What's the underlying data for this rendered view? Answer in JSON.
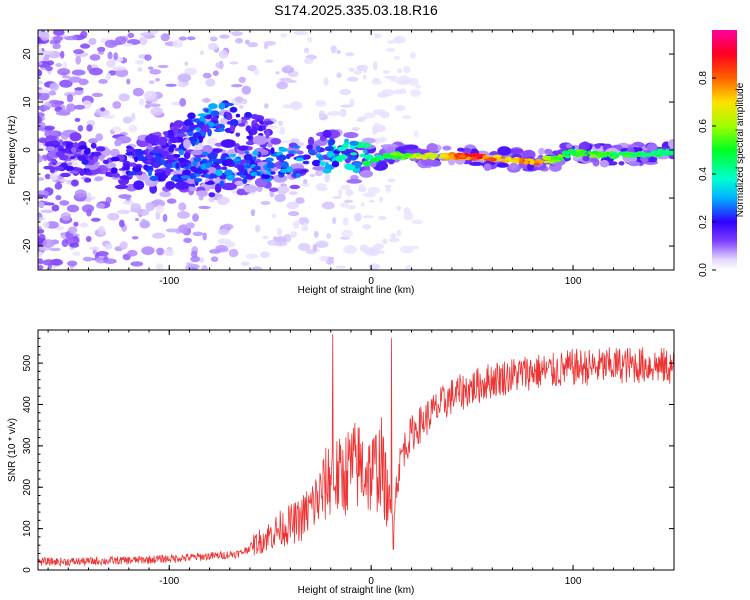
{
  "title": "S174.2025.335.03.18.R16",
  "colors": {
    "snr_line": "#ee3333",
    "frame": "#000000",
    "background": "#ffffff"
  },
  "chart_data": [
    {
      "type": "heatmap",
      "xlabel": "Height of straight line (km)",
      "ylabel": "Frequency (Hz)",
      "xlim": [
        -165,
        150
      ],
      "ylim": [
        -25,
        25
      ],
      "xticks": [
        -100,
        0,
        100
      ],
      "yticks": [
        -20,
        -10,
        0,
        10,
        20
      ],
      "colorbar": {
        "label": "Normalized spectral amplitude",
        "range": [
          0,
          1
        ],
        "ticks": [
          "0.0",
          "0.2",
          "0.4",
          "0.6",
          "0.8"
        ],
        "tick_values": [
          0.0,
          0.2,
          0.4,
          0.6,
          0.8
        ],
        "colormap": "rainbow (white-violet-blue-cyan-green-yellow-red-magenta)"
      },
      "ridge": {
        "x": [
          -160,
          -140,
          -120,
          -100,
          -80,
          -60,
          -40,
          -25,
          -10,
          0,
          10,
          30,
          50,
          70,
          80,
          90,
          100,
          110,
          130,
          150
        ],
        "y": [
          -1,
          -2,
          -2.5,
          -3,
          -4,
          -3.5,
          -2.5,
          -1.5,
          -1,
          -2,
          -1,
          -1.2,
          -1.5,
          -2,
          -2.3,
          -2,
          -0.5,
          -1,
          -1,
          -0.5
        ],
        "amplitude": [
          0.15,
          0.2,
          0.22,
          0.25,
          0.28,
          0.3,
          0.3,
          0.32,
          0.4,
          0.45,
          0.55,
          0.7,
          0.9,
          0.7,
          0.85,
          0.6,
          0.5,
          0.55,
          0.5,
          0.45
        ]
      },
      "upper_branch": {
        "x": [
          -110,
          -100,
          -90,
          -80,
          -70,
          -60,
          -50
        ],
        "y": [
          0,
          2,
          4,
          6,
          7,
          5,
          3
        ],
        "amplitude": [
          0.15,
          0.2,
          0.25,
          0.3,
          0.25,
          0.2,
          0.15
        ]
      }
    },
    {
      "type": "line",
      "xlabel": "Height of straight line (km)",
      "ylabel": "SNR (10 * v/v)",
      "xlim": [
        -165,
        150
      ],
      "ylim": [
        0,
        580
      ],
      "xticks": [
        -100,
        0,
        100
      ],
      "yticks": [
        0,
        100,
        200,
        300,
        400,
        500
      ],
      "series": [
        {
          "name": "SNR",
          "x": [
            -165,
            -150,
            -130,
            -110,
            -90,
            -75,
            -65,
            -55,
            -45,
            -40,
            -35,
            -30,
            -25,
            -20,
            -15,
            -10,
            -5,
            0,
            5,
            10,
            15,
            20,
            30,
            40,
            50,
            60,
            70,
            80,
            90,
            100,
            110,
            120,
            130,
            140,
            150
          ],
          "y": [
            20,
            20,
            22,
            25,
            30,
            35,
            40,
            70,
            100,
            110,
            120,
            150,
            180,
            230,
            220,
            250,
            250,
            230,
            260,
            120,
            280,
            330,
            380,
            420,
            440,
            460,
            470,
            480,
            480,
            490,
            490,
            495,
            495,
            495,
            490
          ],
          "spikes": [
            {
              "x": -19,
              "y": 570
            },
            {
              "x": 10,
              "y": 560
            },
            {
              "x": 11,
              "y": 50
            }
          ]
        }
      ]
    }
  ]
}
